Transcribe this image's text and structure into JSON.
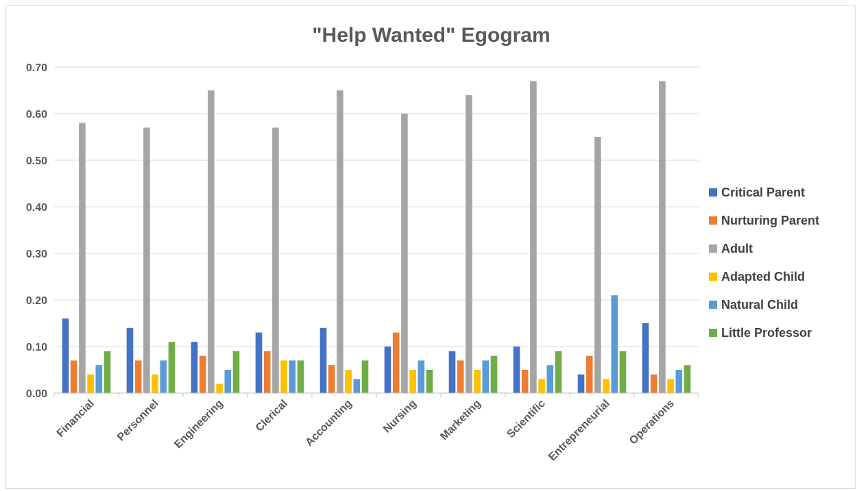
{
  "chart_data": {
    "type": "bar",
    "title": "\"Help Wanted\" Egogram",
    "xlabel": "",
    "ylabel": "",
    "categories": [
      "Financial",
      "Personnel",
      "Engineering",
      "Clerical",
      "Accounting",
      "Nursing",
      "Marketing",
      "Scientific",
      "Entrepreneurial",
      "Operations"
    ],
    "ylim": [
      0,
      0.7
    ],
    "yticks": [
      "0.00",
      "0.10",
      "0.20",
      "0.30",
      "0.40",
      "0.50",
      "0.60",
      "0.70"
    ],
    "grid": true,
    "legend_position": "right",
    "series": [
      {
        "name": "Critical  Parent",
        "color": "#4472c4",
        "values": [
          0.16,
          0.14,
          0.11,
          0.13,
          0.14,
          0.1,
          0.09,
          0.1,
          0.04,
          0.15
        ]
      },
      {
        "name": "Nurturing Parent",
        "color": "#ed7d31",
        "values": [
          0.07,
          0.07,
          0.08,
          0.09,
          0.06,
          0.13,
          0.07,
          0.05,
          0.08,
          0.04
        ]
      },
      {
        "name": "Adult",
        "color": "#a5a5a5",
        "values": [
          0.58,
          0.57,
          0.65,
          0.57,
          0.65,
          0.6,
          0.64,
          0.67,
          0.55,
          0.67
        ]
      },
      {
        "name": "Adapted Child",
        "color": "#ffc000",
        "values": [
          0.04,
          0.04,
          0.02,
          0.07,
          0.05,
          0.05,
          0.05,
          0.03,
          0.03,
          0.03
        ]
      },
      {
        "name": "Natural Child",
        "color": "#5b9bd5",
        "values": [
          0.06,
          0.07,
          0.05,
          0.07,
          0.03,
          0.07,
          0.07,
          0.06,
          0.21,
          0.05
        ]
      },
      {
        "name": "Little Professor",
        "color": "#70ad47",
        "values": [
          0.09,
          0.11,
          0.09,
          0.07,
          0.07,
          0.05,
          0.08,
          0.09,
          0.09,
          0.06
        ]
      }
    ]
  }
}
